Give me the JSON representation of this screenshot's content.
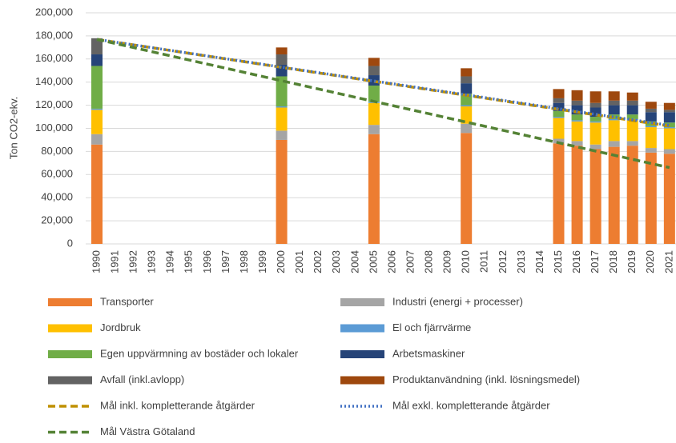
{
  "chart_data": {
    "type": "bar",
    "stacked": true,
    "y_label": "Ton CO2-ekv.",
    "categories": [
      "1990",
      "1991",
      "1992",
      "1993",
      "1994",
      "1995",
      "1996",
      "1997",
      "1998",
      "1999",
      "2000",
      "2001",
      "2002",
      "2003",
      "2004",
      "2005",
      "2006",
      "2007",
      "2008",
      "2009",
      "2010",
      "2011",
      "2012",
      "2013",
      "2014",
      "2015",
      "2016",
      "2017",
      "2018",
      "2019",
      "2020",
      "2021"
    ],
    "ylim": [
      0,
      200000
    ],
    "yticks": [
      0,
      {
        "value": 20000,
        "label": "20,000"
      },
      {
        "value": 40000,
        "label": "40,000"
      },
      {
        "value": 60000,
        "label": "60,000"
      },
      {
        "value": 80000,
        "label": "80,000"
      },
      {
        "value": 100000,
        "label": "100,000"
      },
      {
        "value": 120000,
        "label": "120,000"
      },
      {
        "value": 140000,
        "label": "140,000"
      },
      {
        "value": 160000,
        "label": "160,000"
      },
      {
        "value": 180000,
        "label": "180,000"
      },
      {
        "value": 200000,
        "label": "200,000"
      }
    ],
    "grid": true,
    "series": [
      {
        "name": "Transporter",
        "type": "bar",
        "color": "#ed7d31",
        "values": [
          86000,
          null,
          null,
          null,
          null,
          null,
          null,
          null,
          null,
          null,
          90000,
          null,
          null,
          null,
          null,
          95000,
          null,
          null,
          null,
          null,
          96000,
          null,
          null,
          null,
          null,
          87000,
          85000,
          82000,
          84000,
          85000,
          79000,
          78000
        ]
      },
      {
        "name": "Industri (energi + processer)",
        "type": "bar",
        "color": "#a5a5a5",
        "values": [
          9000,
          null,
          null,
          null,
          null,
          null,
          null,
          null,
          null,
          null,
          8000,
          null,
          null,
          null,
          null,
          8000,
          null,
          null,
          null,
          null,
          8000,
          null,
          null,
          null,
          null,
          4000,
          4000,
          4000,
          5000,
          4000,
          4000,
          4000
        ]
      },
      {
        "name": "Jordbruk",
        "type": "bar",
        "color": "#ffc000",
        "values": [
          21000,
          null,
          null,
          null,
          null,
          null,
          null,
          null,
          null,
          null,
          20000,
          null,
          null,
          null,
          null,
          19000,
          null,
          null,
          null,
          null,
          15000,
          null,
          null,
          null,
          null,
          18000,
          17000,
          19000,
          18000,
          18000,
          18000,
          18000
        ]
      },
      {
        "name": "El och fjärrvärme",
        "type": "bar",
        "color": "#5b9bd5",
        "values": [
          1000,
          null,
          null,
          null,
          null,
          null,
          null,
          null,
          null,
          null,
          1000,
          null,
          null,
          null,
          null,
          1000,
          null,
          null,
          null,
          null,
          1000,
          null,
          null,
          null,
          null,
          1000,
          1000,
          1000,
          1000,
          1000,
          1000,
          1000
        ]
      },
      {
        "name": "Egen uppvärmning av bostäder och lokaler",
        "type": "bar",
        "color": "#70ad47",
        "values": [
          37000,
          null,
          null,
          null,
          null,
          null,
          null,
          null,
          null,
          null,
          26000,
          null,
          null,
          null,
          null,
          14000,
          null,
          null,
          null,
          null,
          10000,
          null,
          null,
          null,
          null,
          5000,
          5000,
          4000,
          4000,
          4000,
          4000,
          4000
        ]
      },
      {
        "name": "Arbetsmaskiner",
        "type": "bar",
        "color": "#264478",
        "values": [
          10000,
          null,
          null,
          null,
          null,
          null,
          null,
          null,
          null,
          null,
          10000,
          null,
          null,
          null,
          null,
          9000,
          null,
          null,
          null,
          null,
          9000,
          null,
          null,
          null,
          null,
          7000,
          8000,
          8000,
          8000,
          8000,
          8000,
          9000
        ]
      },
      {
        "name": "Avfall (inkl.avlopp)",
        "type": "bar",
        "color": "#636363",
        "values": [
          14000,
          null,
          null,
          null,
          null,
          null,
          null,
          null,
          null,
          null,
          9000,
          null,
          null,
          null,
          null,
          8000,
          null,
          null,
          null,
          null,
          6000,
          null,
          null,
          null,
          null,
          4000,
          4000,
          4000,
          4000,
          4000,
          3000,
          2000
        ]
      },
      {
        "name": "Produktanvändning (inkl. lösningsmedel)",
        "type": "bar",
        "color": "#9e480e",
        "values": [
          0,
          null,
          null,
          null,
          null,
          null,
          null,
          null,
          null,
          null,
          6000,
          null,
          null,
          null,
          null,
          7000,
          null,
          null,
          null,
          null,
          7000,
          null,
          null,
          null,
          null,
          8000,
          9000,
          10000,
          8000,
          7000,
          6000,
          6000
        ]
      },
      {
        "name": "Mål inkl. kompletterande åtgärder",
        "type": "line",
        "dash": "dashed",
        "color": "#bf9000",
        "values": [
          177000,
          174580,
          172160,
          169740,
          167320,
          164900,
          162480,
          160060,
          157640,
          155220,
          152800,
          150380,
          147960,
          145540,
          143120,
          140700,
          138280,
          135860,
          133440,
          131020,
          128600,
          126180,
          123760,
          121340,
          118920,
          116500,
          114080,
          111660,
          109240,
          106820,
          104400,
          101980
        ]
      },
      {
        "name": "Mål exkl. kompletterande åtgärder",
        "type": "line",
        "dash": "dotted",
        "color": "#4472c4",
        "values": [
          177000,
          174600,
          172200,
          169800,
          167400,
          165000,
          162600,
          160200,
          157800,
          155400,
          153000,
          150600,
          148200,
          145800,
          143400,
          141000,
          138600,
          136200,
          133800,
          131400,
          129000,
          126600,
          124200,
          121800,
          119400,
          117000,
          114600,
          112200,
          109800,
          107400,
          105000,
          102600
        ]
      },
      {
        "name": "Mål Västra Götaland",
        "type": "line",
        "dash": "dashed",
        "color": "#548235",
        "values": [
          177000,
          173420,
          169840,
          166260,
          162680,
          159100,
          155520,
          151940,
          148360,
          144780,
          141200,
          137620,
          134040,
          130460,
          126880,
          123300,
          119720,
          116140,
          112560,
          108980,
          105400,
          101820,
          98240,
          94660,
          91080,
          87500,
          83920,
          80340,
          76760,
          73180,
          69600,
          66020
        ]
      }
    ]
  }
}
